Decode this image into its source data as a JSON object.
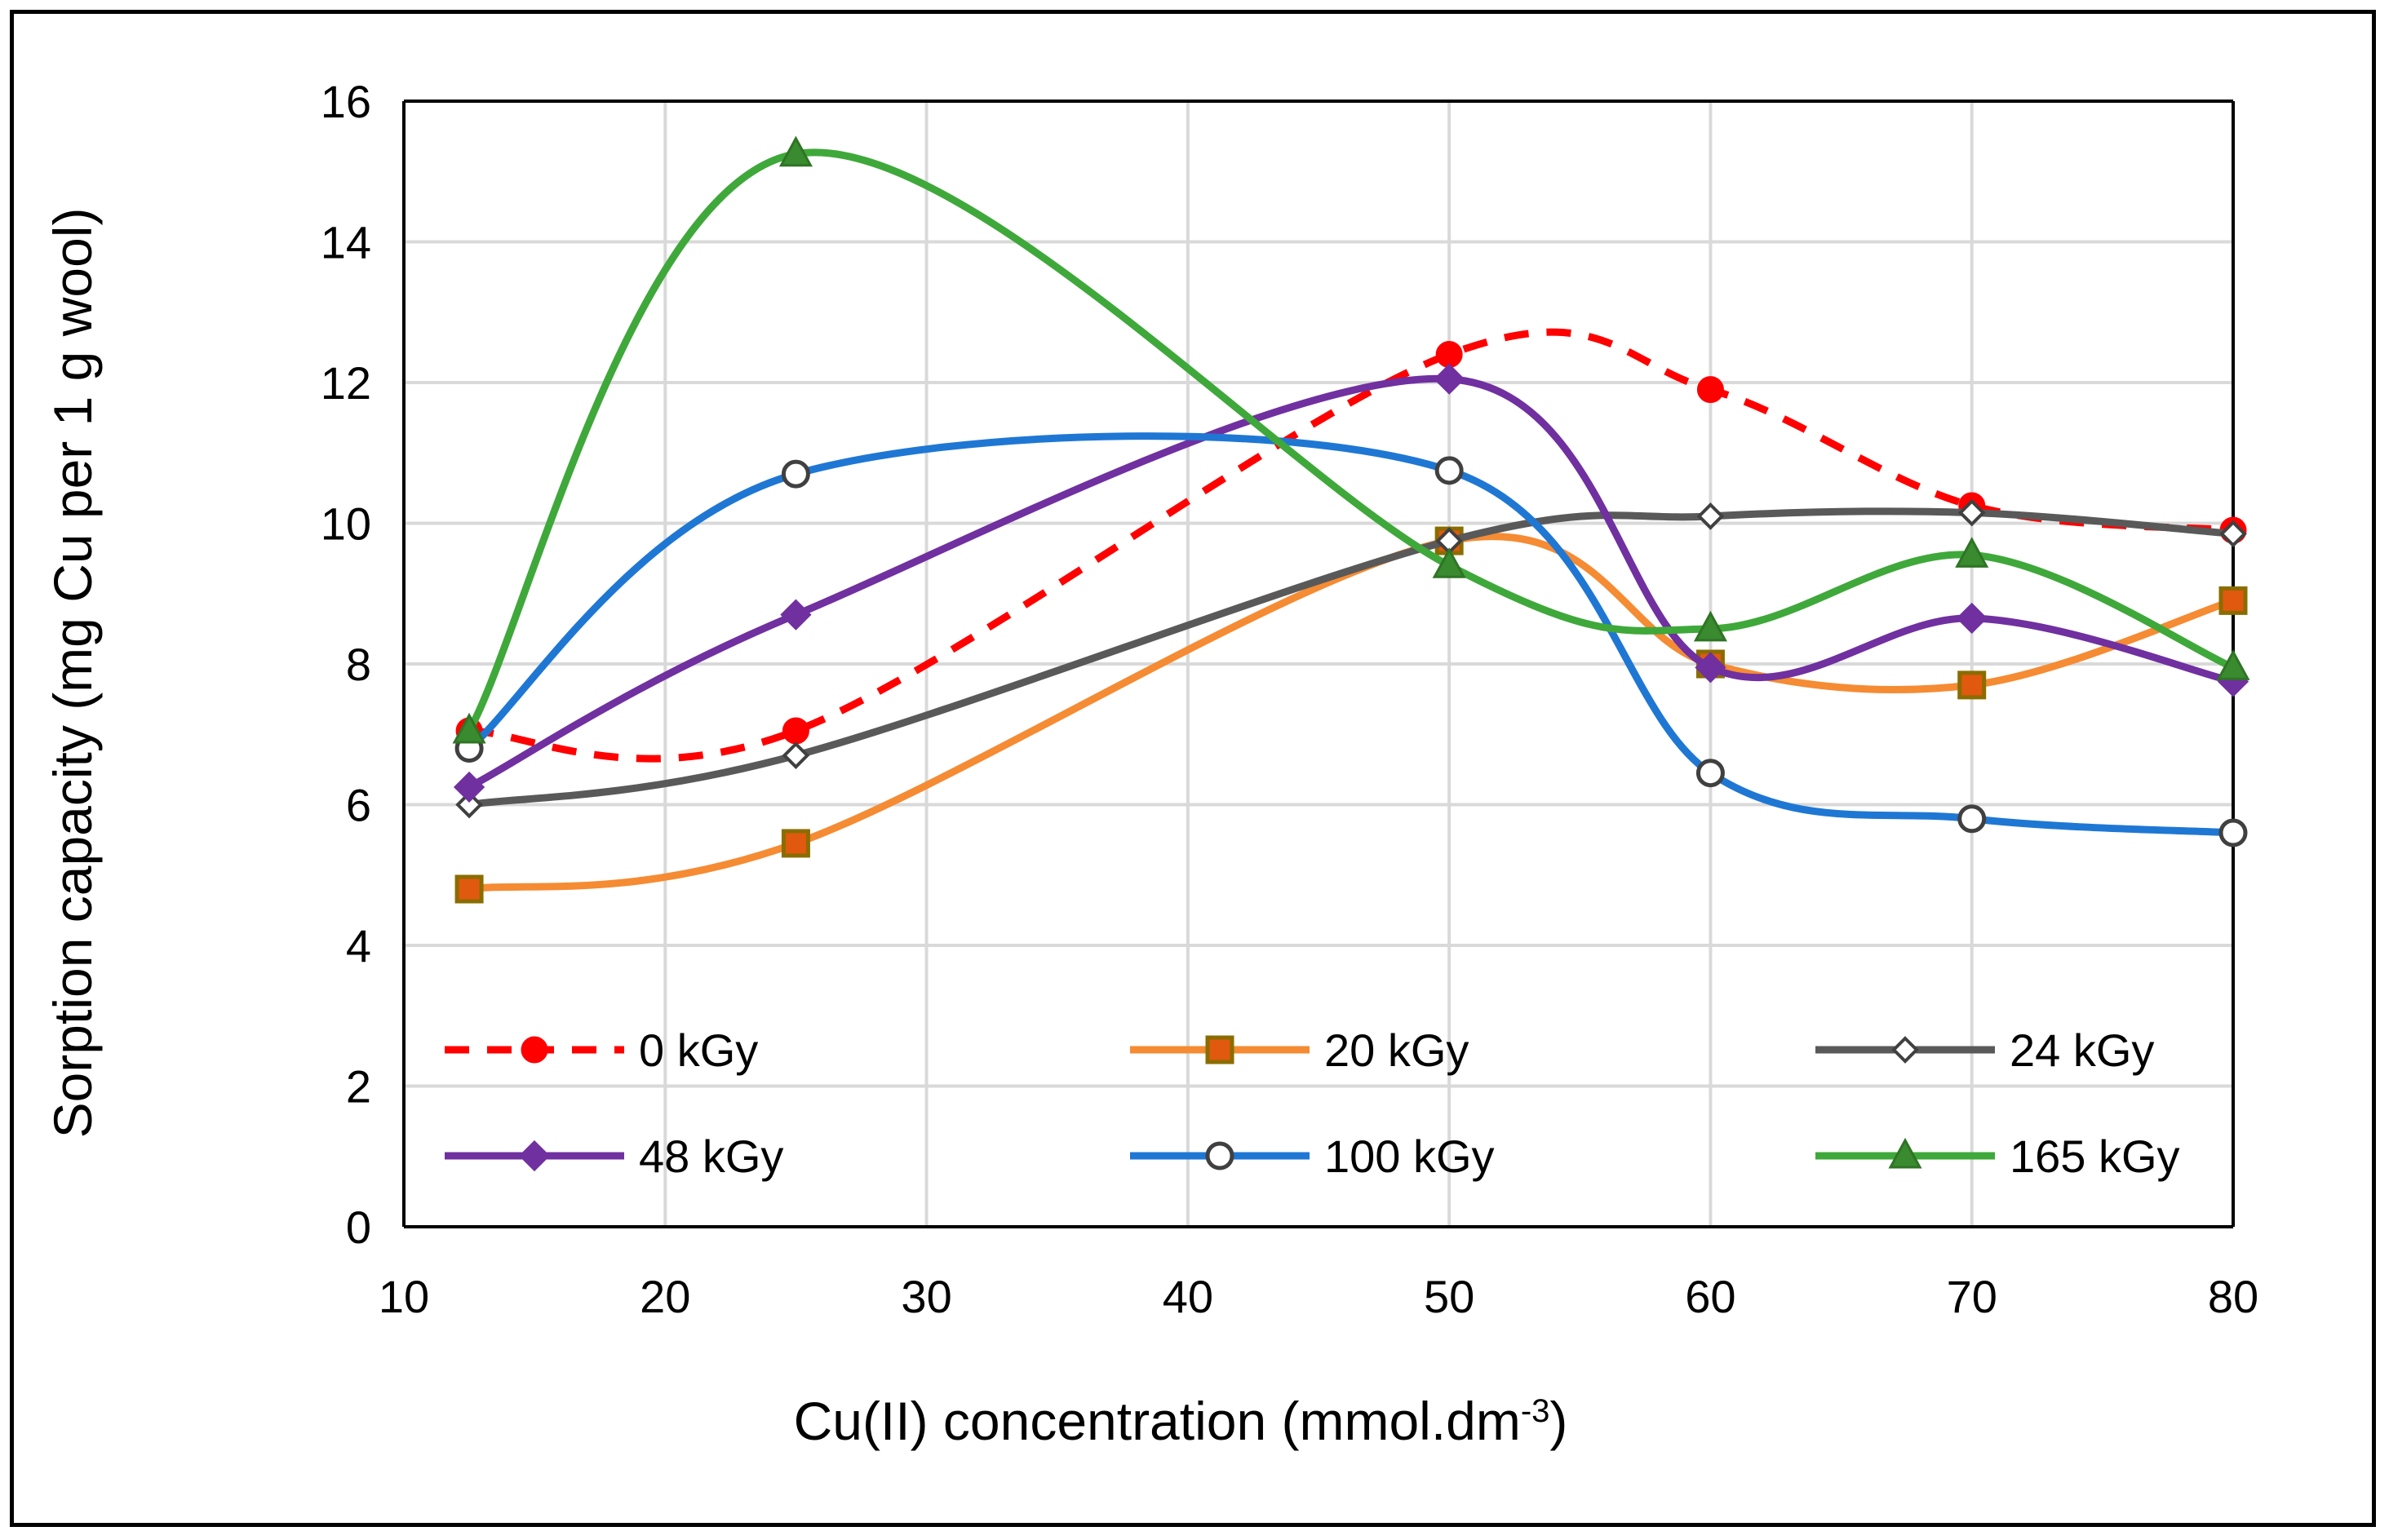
{
  "chart_data": {
    "type": "line",
    "title": "",
    "xlabel": "Cu(II) concentration (mmol.dm",
    "xlabel_superscript": "-3",
    "xlabel_suffix": ")",
    "ylabel": "Sorption capacity (mg Cu per 1 g wool)",
    "xlim": [
      10,
      80
    ],
    "ylim": [
      0,
      16
    ],
    "xticks": [
      10,
      20,
      30,
      40,
      50,
      60,
      70,
      80
    ],
    "yticks": [
      0,
      2,
      4,
      6,
      8,
      10,
      12,
      14,
      16
    ],
    "grid": true,
    "smooth": true,
    "legend_position": "bottom-inside",
    "x": [
      12.5,
      25,
      50,
      60,
      70,
      80
    ],
    "series": [
      {
        "name": "0 kGy",
        "color": "#ff0000",
        "dash": true,
        "marker": "circle-filled",
        "values": [
          7.05,
          7.05,
          12.4,
          11.9,
          10.25,
          9.9
        ]
      },
      {
        "name": "20 kGy",
        "color": "#f58b33",
        "dash": false,
        "marker": "square",
        "values": [
          4.8,
          5.45,
          9.75,
          8.0,
          7.7,
          8.9
        ]
      },
      {
        "name": "24 kGy",
        "color": "#595959",
        "dash": false,
        "marker": "diamond-open",
        "values": [
          6.0,
          6.7,
          9.75,
          10.1,
          10.15,
          9.85
        ]
      },
      {
        "name": "48 kGy",
        "color": "#7030a0",
        "dash": false,
        "marker": "diamond-filled",
        "values": [
          6.25,
          8.7,
          12.05,
          7.95,
          8.65,
          7.75
        ]
      },
      {
        "name": "100 kGy",
        "color": "#1f77d4",
        "dash": false,
        "marker": "circle-open",
        "values": [
          6.8,
          10.7,
          10.75,
          6.45,
          5.8,
          5.6
        ]
      },
      {
        "name": "165 kGy",
        "color": "#3fa83a",
        "dash": false,
        "marker": "triangle",
        "values": [
          7.05,
          15.25,
          9.4,
          8.5,
          9.55,
          7.95
        ]
      }
    ]
  }
}
